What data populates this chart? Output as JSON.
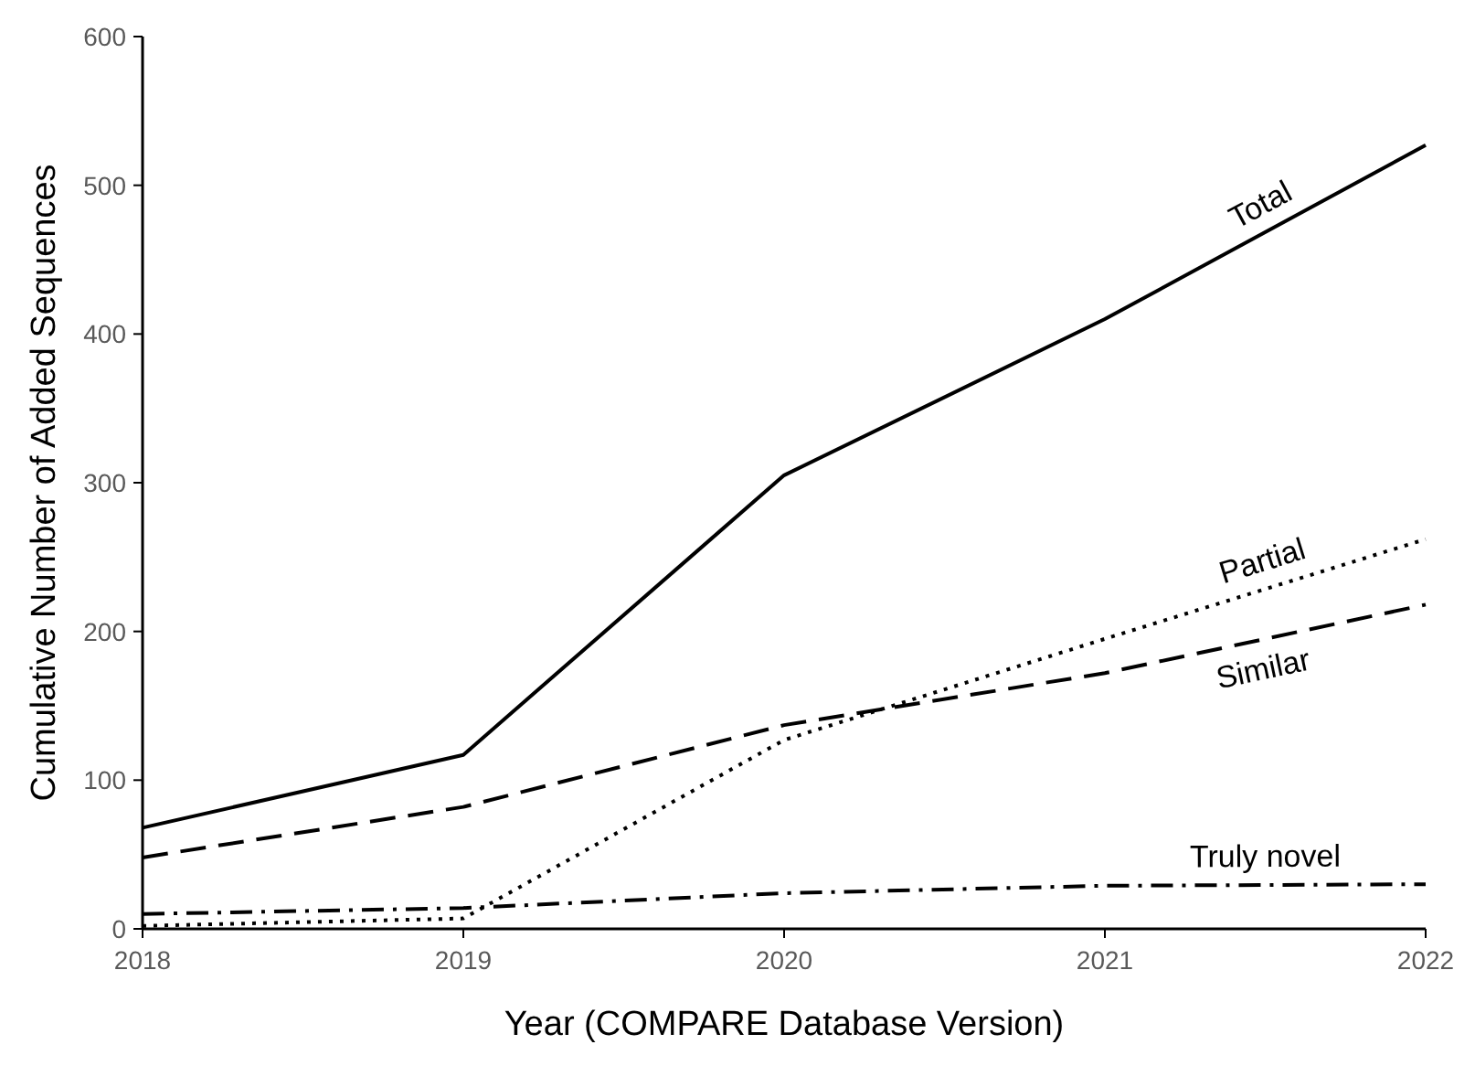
{
  "chart_data": {
    "type": "line",
    "xlabel": "Year (COMPARE Database Version)",
    "ylabel": "Cumulative Number of Added Sequences",
    "x": [
      2018,
      2019,
      2020,
      2021,
      2022
    ],
    "xlim": [
      2018,
      2022
    ],
    "xticks": [
      2018,
      2019,
      2020,
      2021,
      2022
    ],
    "ylim": [
      0,
      600
    ],
    "yticks": [
      0,
      100,
      200,
      300,
      400,
      500,
      600
    ],
    "grid": false,
    "marker": "none",
    "series": [
      {
        "name": "Total",
        "color": "#000000",
        "line_style": "solid",
        "values": [
          68,
          117,
          305,
          410,
          527
        ]
      },
      {
        "name": "Partial",
        "color": "#000000",
        "line_style": "dotted",
        "values": [
          2,
          7,
          127,
          195,
          262
        ]
      },
      {
        "name": "Similar",
        "color": "#000000",
        "line_style": "dashed",
        "values": [
          48,
          82,
          137,
          172,
          218
        ]
      },
      {
        "name": "Truly novel",
        "color": "#000000",
        "line_style": "dashdot",
        "values": [
          10,
          14,
          24,
          29,
          30
        ]
      }
    ]
  }
}
